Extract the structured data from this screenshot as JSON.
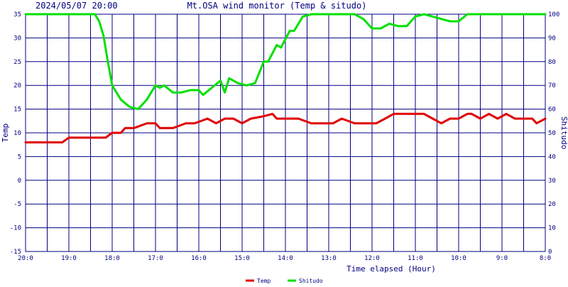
{
  "header": {
    "datetime": "2024/05/07 20:00",
    "title": "Mt.OSA wind monitor (Temp & situdo)"
  },
  "colors": {
    "frame": "#000080",
    "temp": "#e00000",
    "situdo": "#00e000",
    "background": "#ffffff"
  },
  "chart_data": {
    "type": "line",
    "title": "Mt.OSA wind monitor (Temp & situdo)",
    "xlabel": "Time elapsed (Hour)",
    "ylabel_left": "Temp",
    "ylabel_right": "Shitudo",
    "x_tick_labels": [
      "20:0",
      "19:0",
      "18:0",
      "17:0",
      "16:0",
      "15:0",
      "14:0",
      "13:0",
      "12:0",
      "11:0",
      "10:0",
      "9:0",
      "8:0"
    ],
    "hours_elapsed": [
      0,
      0.5,
      1,
      1.5,
      2,
      2.5,
      3,
      3.5,
      4,
      4.5,
      5,
      5.5,
      6,
      6.5,
      7,
      7.5,
      8,
      8.5,
      9,
      9.5,
      10,
      10.5,
      11,
      11.5,
      12
    ],
    "xlim": [
      0,
      12
    ],
    "ylim_left": [
      -15,
      35
    ],
    "ylim_right": [
      0,
      100
    ],
    "y_ticks_left": [
      35,
      30,
      25,
      20,
      15,
      10,
      5,
      0,
      -5,
      -10,
      -15
    ],
    "y_ticks_right": [
      100,
      90,
      80,
      70,
      60,
      50,
      40,
      30,
      20,
      10,
      0
    ],
    "grid": true,
    "legend_position": "bottom-center",
    "series": [
      {
        "name": "Temp",
        "axis": "left",
        "x": [
          0,
          0.4,
          0.85,
          1,
          1.4,
          1.85,
          2,
          2.2,
          2.3,
          2.5,
          2.8,
          3,
          3.1,
          3.4,
          3.7,
          3.9,
          4.2,
          4.4,
          4.6,
          4.8,
          5,
          5.2,
          5.5,
          5.7,
          5.8,
          6,
          6.3,
          6.6,
          6.8,
          7.1,
          7.3,
          7.6,
          7.8,
          8.1,
          8.3,
          8.5,
          8.8,
          9,
          9.2,
          9.4,
          9.6,
          9.8,
          10,
          10.2,
          10.3,
          10.5,
          10.7,
          10.9,
          11.1,
          11.3,
          11.5,
          11.7,
          11.8,
          12
        ],
        "values": [
          8,
          8,
          8,
          9,
          9,
          9,
          10,
          10,
          11,
          11,
          12,
          12,
          11,
          11,
          12,
          12,
          13,
          12,
          13,
          13,
          12,
          13,
          13.5,
          14,
          13,
          13,
          13,
          12,
          12,
          12,
          13,
          12,
          12,
          12,
          13,
          14,
          14,
          14,
          14,
          13,
          12,
          13,
          13,
          14,
          14,
          13,
          14,
          13,
          14,
          13,
          13,
          13,
          12,
          13
        ]
      },
      {
        "name": "Shitudo",
        "axis": "right",
        "x": [
          0,
          0.5,
          1,
          1.5,
          1.6,
          1.7,
          1.8,
          1.9,
          2,
          2.1,
          2.2,
          2.4,
          2.6,
          2.8,
          3,
          3.1,
          3.2,
          3.4,
          3.6,
          3.8,
          4,
          4.1,
          4.3,
          4.5,
          4.6,
          4.7,
          4.9,
          5.1,
          5.3,
          5.5,
          5.6,
          5.8,
          5.9,
          6.1,
          6.2,
          6.4,
          6.6,
          6.8,
          7.0,
          7.3,
          7.6,
          7.8,
          8.0,
          8.2,
          8.4,
          8.6,
          8.8,
          9.0,
          9.2,
          9.4,
          9.6,
          9.8,
          10.0,
          10.2,
          10.5,
          11.0,
          11.5,
          12
        ],
        "values": [
          100,
          100,
          100,
          100,
          100,
          97,
          91,
          80,
          70,
          67,
          64,
          61,
          60,
          64,
          70,
          69,
          70,
          67,
          67,
          68,
          68,
          66,
          69,
          72,
          67,
          73,
          71,
          70,
          71,
          80,
          80,
          87,
          86,
          93,
          93,
          99,
          100,
          100,
          100,
          100,
          100,
          98,
          94,
          94,
          96,
          95,
          95,
          99,
          100,
          99,
          98,
          97,
          97,
          100,
          100,
          100,
          100,
          100
        ]
      }
    ]
  }
}
